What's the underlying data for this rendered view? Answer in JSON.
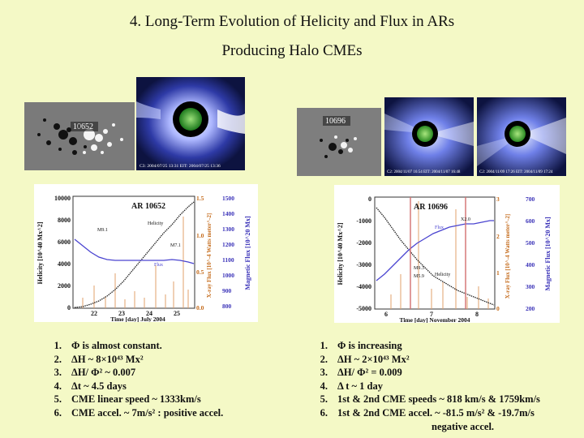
{
  "title": {
    "line1": "4. Long-Term Evolution of Helicity and Flux in ARs",
    "line2": "Producing Halo CMEs"
  },
  "left": {
    "mag_label": "10652",
    "lasco_caption": "C3: 2004/07/25 13:31   EIT: 2004/07/25 13:36",
    "plot": {
      "ar_label": "AR 10652",
      "helicity_label": "Helicity",
      "flux_label": "Flux",
      "flare_labels": [
        "M9.1",
        "M7.1"
      ],
      "y_left_ticks": [
        "10000",
        "8000",
        "6000",
        "4000",
        "2000",
        "0"
      ],
      "y_mid_ticks": [
        "1.5",
        "1.0",
        "0.5",
        "0.0"
      ],
      "y_right_ticks": [
        "1500",
        "1400",
        "1300",
        "1200",
        "1100",
        "1000",
        "900",
        "800"
      ],
      "x_ticks": [
        "22",
        "23",
        "24",
        "25"
      ],
      "xlabel": "Time [day]  July 2004",
      "ylabel_left": "Helicity [10^40 Mx^2]",
      "ylabel_mid": "X-ray Flux [10^-4 Watts meter^-2]",
      "ylabel_right": "Magnetic Flux [10^20 Mx]"
    },
    "items": [
      {
        "num": "1.",
        "text": "Φ is almost constant."
      },
      {
        "num": "2.",
        "text": "ΔH ~ 8×10⁴³ Mx²"
      },
      {
        "num": "3.",
        "text": "ΔH/ Φ² ~ 0.007"
      },
      {
        "num": "4.",
        "text": "Δt ~ 4.5 days"
      },
      {
        "num": "5.",
        "text": "CME linear speed ~ 1333km/s"
      },
      {
        "num": "6.",
        "text": "CME accel. ~ 7m/s² : positive accel."
      }
    ]
  },
  "right": {
    "mag_label": "10696",
    "lasco_caption_1": "C2: 2004/11/07 16:54   EIT: 2004/11/07 16:48",
    "lasco_caption_2": "C2: 2004/11/09 17:26   EIT: 2004/11/09 17:24",
    "plot": {
      "ar_label": "AR 10696",
      "helicity_label": "Helicity",
      "flux_label": "Flux",
      "flare_labels": [
        "X2.0",
        "M9.3",
        "M5.9"
      ],
      "y_left_ticks": [
        "0",
        "-1000",
        "-2000",
        "-3000",
        "-4000",
        "-5000"
      ],
      "y_mid_ticks": [
        "3",
        "2",
        "1",
        "0"
      ],
      "y_right_ticks": [
        "700",
        "600",
        "500",
        "400",
        "300",
        "200"
      ],
      "x_ticks": [
        "6",
        "7",
        "8"
      ],
      "xlabel": "Time [day]  November 2004",
      "ylabel_left": "Helicity [10^40 Mx^2]",
      "ylabel_mid": "X-ray Flux [10^-4 Watts meter^-2]",
      "ylabel_right": "Magnetic Flux [10^20 Mx]"
    },
    "items": [
      {
        "num": "1.",
        "text": "Φ is increasing"
      },
      {
        "num": "2.",
        "text": "ΔH ~ 2×10⁴³ Mx²"
      },
      {
        "num": "3.",
        "text": "ΔH/ Φ² = 0.009"
      },
      {
        "num": "4.",
        "text": "Δ t ~ 1 day"
      },
      {
        "num": "5.",
        "text": "1st & 2nd CME speeds ~ 818 km/s  & 1759km/s"
      },
      {
        "num": "6.",
        "text": "1st & 2nd CME accel. ~ -81.5 m/s²  & -19.7m/s"
      }
    ],
    "item6_cont": "negative accel."
  }
}
